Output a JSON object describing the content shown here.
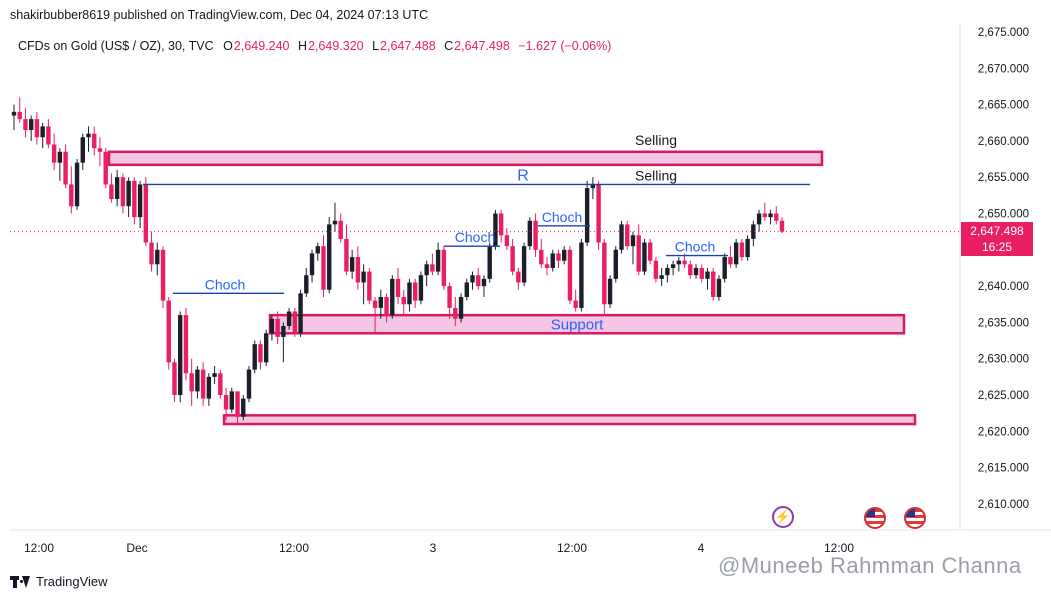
{
  "header": {
    "caption": "shakirbubber8619 published on TradingView.com, Dec 04, 2024 07:13 UTC",
    "symbol": "CFDs on Gold (US$ / OZ), 30, TVC",
    "o_label": "O",
    "o_value": "2,649.240",
    "h_label": "H",
    "h_value": "2,649.320",
    "l_label": "L",
    "l_value": "2,647.488",
    "c_label": "C",
    "c_value": "2,647.498",
    "change": "−1.627 (−0.06%)"
  },
  "price_tag": {
    "price": "2,647.498",
    "countdown": "16:25"
  },
  "footer": {
    "brand": "TradingView"
  },
  "watermark": "@Muneeb Rahmman Channa",
  "colors": {
    "up": "#1b1f2a",
    "down": "#e91e63",
    "zone_fill": "#f3c6e3",
    "zone_border": "#d81b60",
    "level_line": "#1e40af",
    "annot_text": "#2962ff"
  },
  "icons": {
    "event": "lightning-icon",
    "flags": "us-flag-icon"
  },
  "chart_data": {
    "type": "candlestick",
    "timeframe": "30",
    "y_axis": {
      "ticks": [
        2675,
        2670,
        2665,
        2660,
        2655,
        2650,
        2645,
        2640,
        2635,
        2630,
        2625,
        2620,
        2615,
        2610
      ],
      "tick_labels": [
        "2,675.000",
        "2,670.000",
        "2,665.000",
        "2,660.000",
        "2,655.000",
        "2,650.000",
        "2,645.000",
        "2,640.000",
        "2,635.000",
        "2,630.000",
        "2,625.000",
        "2,620.000",
        "2,615.000",
        "2,610.000"
      ],
      "range": [
        2607.5,
        2675.5
      ]
    },
    "x_axis": {
      "tick_labels": [
        "12:00",
        "Dec",
        "12:00",
        "3",
        "12:00",
        "4",
        "12:00"
      ]
    },
    "last_price": 2647.498,
    "zones": [
      {
        "label": "Selling",
        "top": 2658.5,
        "bottom": 2656.7
      },
      {
        "label": "Support",
        "top": 2636.0,
        "bottom": 2633.5
      },
      {
        "label": "",
        "top": 2622.2,
        "bottom": 2621.0
      }
    ],
    "lines": [
      {
        "label": "R",
        "label2": "Selling",
        "price": 2654.0
      },
      {
        "label": "Choch",
        "price": 2639.0
      },
      {
        "label": "Choch",
        "price": 2645.5
      },
      {
        "label": "Choch",
        "price": 2648.3
      },
      {
        "label": "Choch",
        "price": 2644.2
      }
    ],
    "candles": [
      [
        2663.5,
        2665.0,
        2661.5,
        2664.0
      ],
      [
        2664.0,
        2666.0,
        2662.5,
        2663.0
      ],
      [
        2663.0,
        2664.5,
        2660.5,
        2661.5
      ],
      [
        2661.5,
        2663.5,
        2660.0,
        2663.0
      ],
      [
        2663.0,
        2664.0,
        2659.5,
        2660.5
      ],
      [
        2660.5,
        2662.5,
        2659.0,
        2662.0
      ],
      [
        2662.0,
        2663.0,
        2659.0,
        2659.5
      ],
      [
        2659.5,
        2661.0,
        2656.0,
        2657.0
      ],
      [
        2657.0,
        2659.0,
        2654.5,
        2658.5
      ],
      [
        2658.5,
        2659.5,
        2653.5,
        2654.0
      ],
      [
        2654.0,
        2656.5,
        2650.0,
        2651.0
      ],
      [
        2651.0,
        2657.5,
        2650.5,
        2657.0
      ],
      [
        2657.0,
        2661.0,
        2656.0,
        2660.5
      ],
      [
        2660.5,
        2662.0,
        2658.5,
        2661.0
      ],
      [
        2661.0,
        2662.0,
        2658.0,
        2659.0
      ],
      [
        2659.0,
        2660.5,
        2656.5,
        2658.5
      ],
      [
        2658.5,
        2659.0,
        2653.5,
        2654.0
      ],
      [
        2654.0,
        2655.5,
        2651.5,
        2652.0
      ],
      [
        2652.0,
        2656.0,
        2651.0,
        2655.0
      ],
      [
        2655.0,
        2655.5,
        2650.0,
        2651.0
      ],
      [
        2651.0,
        2655.0,
        2649.5,
        2654.5
      ],
      [
        2654.5,
        2655.0,
        2648.5,
        2649.5
      ],
      [
        2649.5,
        2654.5,
        2648.0,
        2654.0
      ],
      [
        2654.0,
        2655.0,
        2645.5,
        2646.0
      ],
      [
        2646.0,
        2647.5,
        2642.0,
        2643.0
      ],
      [
        2643.0,
        2646.0,
        2641.5,
        2645.0
      ],
      [
        2645.0,
        2645.5,
        2637.0,
        2638.0
      ],
      [
        2638.0,
        2638.5,
        2628.5,
        2629.5
      ],
      [
        2629.5,
        2630.0,
        2624.0,
        2625.0
      ],
      [
        2625.0,
        2636.5,
        2624.0,
        2636.0
      ],
      [
        2636.0,
        2637.0,
        2627.0,
        2628.0
      ],
      [
        2628.0,
        2630.0,
        2623.5,
        2625.5
      ],
      [
        2625.5,
        2629.0,
        2624.5,
        2628.5
      ],
      [
        2628.5,
        2629.5,
        2623.5,
        2624.5
      ],
      [
        2624.5,
        2628.0,
        2623.5,
        2627.5
      ],
      [
        2627.5,
        2629.0,
        2626.5,
        2628.0
      ],
      [
        2628.0,
        2628.5,
        2624.5,
        2625.0
      ],
      [
        2625.0,
        2626.0,
        2621.5,
        2623.0
      ],
      [
        2623.0,
        2626.0,
        2622.5,
        2625.5
      ],
      [
        2625.5,
        2625.5,
        2621.0,
        2622.0
      ],
      [
        2622.0,
        2625.0,
        2621.5,
        2624.5
      ],
      [
        2624.5,
        2629.0,
        2624.0,
        2628.5
      ],
      [
        2628.5,
        2632.5,
        2628.0,
        2632.0
      ],
      [
        2632.0,
        2632.5,
        2628.5,
        2629.5
      ],
      [
        2629.5,
        2634.0,
        2629.0,
        2633.5
      ],
      [
        2633.5,
        2636.0,
        2632.5,
        2635.5
      ],
      [
        2635.5,
        2636.5,
        2632.0,
        2633.0
      ],
      [
        2633.0,
        2635.0,
        2629.5,
        2634.5
      ],
      [
        2634.5,
        2637.0,
        2634.0,
        2636.5
      ],
      [
        2636.5,
        2637.0,
        2633.0,
        2633.5
      ],
      [
        2633.5,
        2639.5,
        2633.0,
        2639.0
      ],
      [
        2639.0,
        2642.5,
        2638.5,
        2641.5
      ],
      [
        2641.5,
        2645.0,
        2640.5,
        2644.5
      ],
      [
        2644.5,
        2646.0,
        2643.5,
        2645.5
      ],
      [
        2645.5,
        2647.0,
        2638.5,
        2639.5
      ],
      [
        2639.5,
        2649.5,
        2639.0,
        2648.5
      ],
      [
        2648.5,
        2651.5,
        2647.5,
        2649.0
      ],
      [
        2649.0,
        2650.0,
        2646.0,
        2646.5
      ],
      [
        2646.5,
        2648.5,
        2641.5,
        2642.0
      ],
      [
        2642.0,
        2645.0,
        2641.0,
        2644.0
      ],
      [
        2644.0,
        2645.5,
        2639.5,
        2640.5
      ],
      [
        2640.5,
        2643.0,
        2637.5,
        2642.0
      ],
      [
        2642.0,
        2642.5,
        2637.5,
        2638.0
      ],
      [
        2638.0,
        2638.5,
        2633.5,
        2637.0
      ],
      [
        2637.0,
        2639.5,
        2635.5,
        2638.5
      ],
      [
        2638.5,
        2639.0,
        2635.0,
        2636.0
      ],
      [
        2636.0,
        2641.5,
        2635.5,
        2641.0
      ],
      [
        2641.0,
        2642.5,
        2637.5,
        2638.5
      ],
      [
        2638.5,
        2639.5,
        2636.0,
        2637.5
      ],
      [
        2637.5,
        2641.0,
        2636.5,
        2640.5
      ],
      [
        2640.5,
        2641.0,
        2637.0,
        2638.0
      ],
      [
        2638.0,
        2642.0,
        2637.5,
        2641.5
      ],
      [
        2641.5,
        2643.5,
        2640.0,
        2643.0
      ],
      [
        2643.0,
        2644.5,
        2641.5,
        2642.0
      ],
      [
        2642.0,
        2646.0,
        2641.5,
        2645.0
      ],
      [
        2645.0,
        2645.5,
        2639.5,
        2640.0
      ],
      [
        2640.0,
        2640.5,
        2635.5,
        2637.0
      ],
      [
        2637.0,
        2638.5,
        2634.5,
        2635.5
      ],
      [
        2635.5,
        2639.0,
        2635.0,
        2638.5
      ],
      [
        2638.5,
        2641.0,
        2638.0,
        2640.5
      ],
      [
        2640.5,
        2642.0,
        2639.5,
        2641.5
      ],
      [
        2641.5,
        2642.5,
        2639.5,
        2640.0
      ],
      [
        2640.0,
        2641.5,
        2638.5,
        2641.0
      ],
      [
        2641.0,
        2646.0,
        2640.5,
        2645.5
      ],
      [
        2645.5,
        2650.5,
        2645.0,
        2650.0
      ],
      [
        2650.0,
        2650.5,
        2646.0,
        2647.0
      ],
      [
        2647.0,
        2648.0,
        2645.0,
        2645.5
      ],
      [
        2645.5,
        2646.5,
        2641.5,
        2642.0
      ],
      [
        2642.0,
        2642.5,
        2639.5,
        2640.5
      ],
      [
        2640.5,
        2646.0,
        2640.0,
        2645.5
      ],
      [
        2645.5,
        2649.5,
        2645.0,
        2649.0
      ],
      [
        2649.0,
        2650.0,
        2644.0,
        2645.0
      ],
      [
        2645.0,
        2646.5,
        2642.5,
        2643.0
      ],
      [
        2643.0,
        2644.0,
        2641.5,
        2642.5
      ],
      [
        2642.5,
        2645.0,
        2642.0,
        2644.5
      ],
      [
        2644.5,
        2645.0,
        2642.5,
        2643.5
      ],
      [
        2643.5,
        2645.5,
        2643.0,
        2645.0
      ],
      [
        2645.0,
        2645.5,
        2637.5,
        2638.0
      ],
      [
        2638.0,
        2639.5,
        2636.5,
        2637.0
      ],
      [
        2637.0,
        2646.5,
        2636.5,
        2646.0
      ],
      [
        2646.0,
        2654.5,
        2645.5,
        2653.5
      ],
      [
        2653.5,
        2655.0,
        2652.0,
        2654.0
      ],
      [
        2654.0,
        2654.5,
        2645.0,
        2646.0
      ],
      [
        2646.0,
        2646.5,
        2636.0,
        2637.5
      ],
      [
        2637.5,
        2641.5,
        2637.0,
        2641.0
      ],
      [
        2641.0,
        2645.5,
        2640.5,
        2645.0
      ],
      [
        2645.0,
        2649.0,
        2644.5,
        2648.5
      ],
      [
        2648.5,
        2649.0,
        2645.0,
        2645.5
      ],
      [
        2645.5,
        2647.5,
        2643.0,
        2647.0
      ],
      [
        2647.0,
        2648.5,
        2641.5,
        2642.0
      ],
      [
        2642.0,
        2646.5,
        2641.5,
        2646.0
      ],
      [
        2646.0,
        2646.5,
        2643.0,
        2643.5
      ],
      [
        2643.5,
        2644.0,
        2640.5,
        2641.0
      ],
      [
        2641.0,
        2642.5,
        2640.0,
        2641.5
      ],
      [
        2641.5,
        2643.0,
        2640.5,
        2642.5
      ],
      [
        2642.5,
        2643.5,
        2641.5,
        2643.0
      ],
      [
        2643.0,
        2644.0,
        2642.0,
        2643.5
      ],
      [
        2643.5,
        2644.5,
        2642.5,
        2643.0
      ],
      [
        2643.0,
        2643.5,
        2641.0,
        2641.5
      ],
      [
        2641.5,
        2643.0,
        2641.0,
        2642.5
      ],
      [
        2642.5,
        2643.0,
        2640.5,
        2641.0
      ],
      [
        2641.0,
        2642.5,
        2639.5,
        2642.0
      ],
      [
        2642.0,
        2642.5,
        2638.0,
        2638.5
      ],
      [
        2638.5,
        2641.5,
        2638.0,
        2641.0
      ],
      [
        2641.0,
        2644.5,
        2640.5,
        2644.0
      ],
      [
        2644.0,
        2645.5,
        2642.5,
        2643.0
      ],
      [
        2643.0,
        2646.5,
        2642.5,
        2646.0
      ],
      [
        2646.0,
        2646.5,
        2643.5,
        2644.0
      ],
      [
        2644.0,
        2647.0,
        2643.5,
        2646.5
      ],
      [
        2646.5,
        2649.0,
        2645.5,
        2648.5
      ],
      [
        2648.5,
        2650.5,
        2647.5,
        2650.0
      ],
      [
        2650.0,
        2651.5,
        2649.0,
        2649.5
      ],
      [
        2649.5,
        2650.5,
        2648.5,
        2650.0
      ],
      [
        2650.0,
        2651.0,
        2648.5,
        2649.0
      ],
      [
        2649.0,
        2649.5,
        2647.3,
        2647.5
      ]
    ]
  }
}
